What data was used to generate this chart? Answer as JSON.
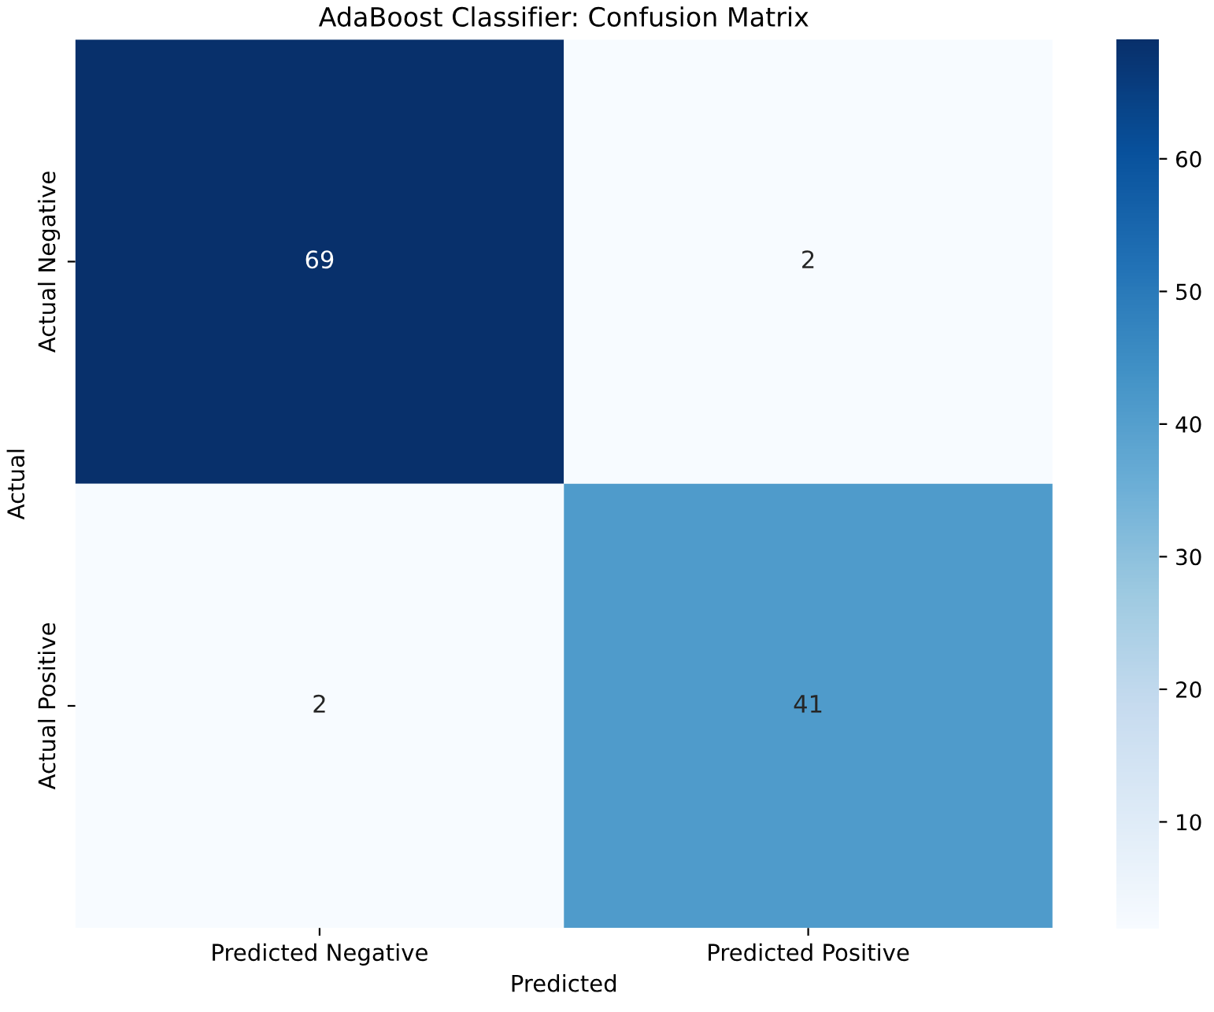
{
  "chart_data": {
    "type": "heatmap",
    "title": "AdaBoost Classifier: Confusion Matrix",
    "xlabel": "Predicted",
    "ylabel": "Actual",
    "categories": [
      "Predicted Negative",
      "Predicted Positive"
    ],
    "y_categories": [
      "Actual Negative",
      "Actual Positive"
    ],
    "cells": [
      [
        69,
        2
      ],
      [
        2,
        41
      ]
    ],
    "data_labels": true,
    "clim": [
      2,
      69
    ],
    "cticks": [
      10,
      20,
      30,
      40,
      50,
      60
    ]
  }
}
